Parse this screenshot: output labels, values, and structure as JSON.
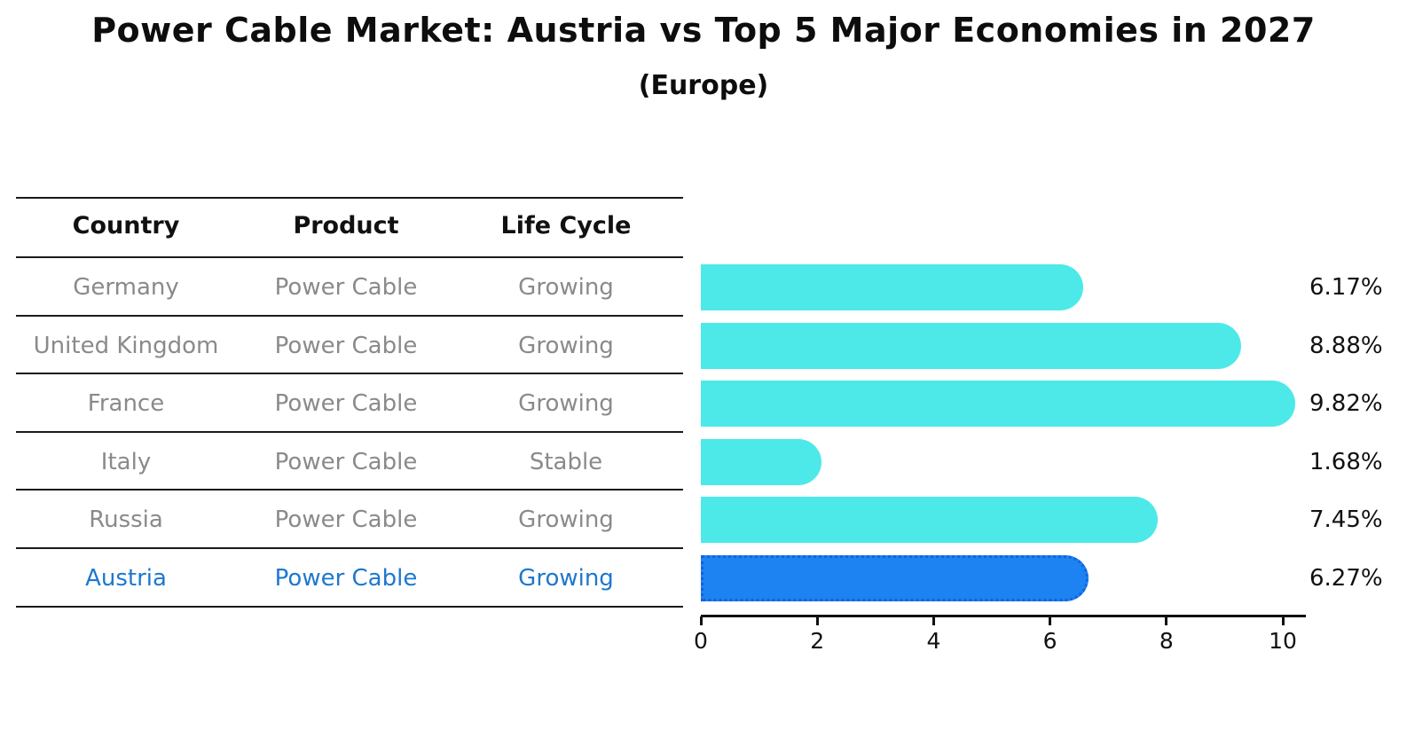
{
  "title": "Power Cable Market: Austria vs Top 5 Major Economies in 2027",
  "subtitle": "(Europe)",
  "table": {
    "headers": [
      "Country",
      "Product",
      "Life Cycle"
    ],
    "rows": [
      {
        "country": "Germany",
        "product": "Power Cable",
        "life_cycle": "Growing",
        "highlight": false
      },
      {
        "country": "United Kingdom",
        "product": "Power Cable",
        "life_cycle": "Growing",
        "highlight": false
      },
      {
        "country": "France",
        "product": "Power Cable",
        "life_cycle": "Growing",
        "highlight": false
      },
      {
        "country": "Italy",
        "product": "Power Cable",
        "life_cycle": "Stable",
        "highlight": false
      },
      {
        "country": "Russia",
        "product": "Power Cable",
        "life_cycle": "Growing",
        "highlight": false
      },
      {
        "country": "Austria",
        "product": "Power Cable",
        "life_cycle": "Growing",
        "highlight": true
      }
    ],
    "header_text_color": "#111111",
    "row_text_color": "#8A8A8A",
    "highlight_text_color": "#1E78CE"
  },
  "chart_data": {
    "type": "bar",
    "orientation": "horizontal",
    "title": "Power Cable Market: Austria vs Top 5 Major Economies in 2027",
    "subtitle": "(Europe)",
    "categories": [
      "Germany",
      "United Kingdom",
      "France",
      "Italy",
      "Russia",
      "Austria"
    ],
    "values": [
      6.17,
      8.88,
      9.82,
      1.68,
      7.45,
      6.27
    ],
    "value_labels": [
      "6.17%",
      "8.88%",
      "9.82%",
      "1.68%",
      "7.45%",
      "6.27%"
    ],
    "x_ticks": [
      "0",
      "2",
      "4",
      "6",
      "8",
      "10"
    ],
    "x_tick_values": [
      0,
      2,
      4,
      6,
      8,
      10
    ],
    "xlim": [
      0,
      10.4
    ],
    "grid": false,
    "legend_position": "none",
    "bar_color": "#4DE9E9",
    "highlight": {
      "category": "Austria",
      "bar_color": "#1D82F2",
      "border_color": "#1263DC",
      "border_style": "dotted"
    }
  }
}
